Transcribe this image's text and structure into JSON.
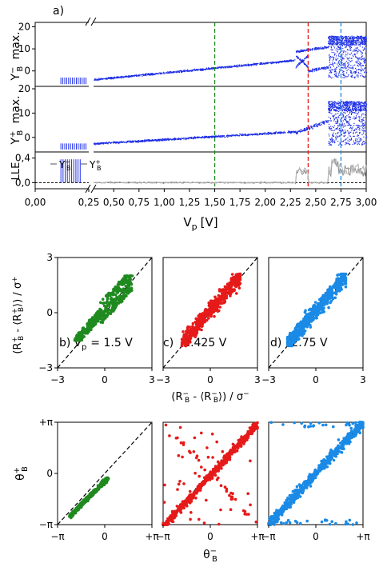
{
  "colors": {
    "blue": "#1f2fe6",
    "green": "#1f8a1f",
    "red": "#e61a1a",
    "light_blue": "#1a8ae6",
    "gray": "#8c8c8c",
    "black": "#000000"
  },
  "chart_data": [
    {
      "type": "scatter",
      "panel": "a",
      "label": "a)",
      "xlabel": "V",
      "xlabel_sub": "p",
      "xunit": "[V]",
      "x_ticks": [
        "0,00",
        "0,25",
        "0,50",
        "0,75",
        "1,00",
        "1,25",
        "1,50",
        "1,75",
        "2,00",
        "2,25",
        "2,50",
        "2,75",
        "3,00"
      ],
      "x_broken_between": [
        0.25,
        0.3
      ],
      "xlim": [
        0.3,
        3.0
      ],
      "markers": [
        {
          "x": 1.5,
          "color": "green",
          "style": "dashed"
        },
        {
          "x": 2.425,
          "color": "red",
          "style": "dashed"
        },
        {
          "x": 2.75,
          "color": "light_blue",
          "style": "dashed"
        }
      ],
      "subplots": [
        {
          "ylabel": "Y",
          "ylabel_sup": "−",
          "ylabel_sub": "B",
          "ylabel_tail": "max.",
          "y_ticks": [
            "0",
            "10",
            "20"
          ],
          "ylim": [
            -7,
            22
          ],
          "series_color": "blue",
          "branches": [
            {
              "x_from": 0.3,
              "x_to": 2.3,
              "y_from": -3.8,
              "y_to": 5.0,
              "spread": 1.2
            },
            {
              "x_from": 2.3,
              "x_to": 2.42,
              "y_from": 2.0,
              "y_to": 7.0,
              "spread": 1.5
            },
            {
              "x_from": 2.3,
              "x_to": 2.42,
              "y_from": 7.0,
              "y_to": 2.0,
              "spread": 1.5
            },
            {
              "x_from": 2.3,
              "x_to": 2.62,
              "y_from": 9.0,
              "y_to": 11.0,
              "spread": 1.5
            },
            {
              "x_from": 2.42,
              "x_to": 2.62,
              "y_from": 0.0,
              "y_to": 2.0,
              "spread": 2.0
            },
            {
              "x_from": 2.62,
              "x_to": 3.0,
              "y_from": -3.0,
              "y_to": 16.0,
              "band": true
            }
          ],
          "inset": {
            "x_from": 0.0,
            "x_to": 0.25,
            "y_from": -6.0,
            "y_to": -3.0
          }
        },
        {
          "ylabel": "Y",
          "ylabel_sup": "+",
          "ylabel_sub": "B",
          "ylabel_tail": "max.",
          "y_ticks": [
            "0",
            "10",
            "20"
          ],
          "ylim": [
            -6,
            21
          ],
          "series_color": "blue",
          "branches": [
            {
              "x_from": 0.3,
              "x_to": 2.3,
              "y_from": -2.5,
              "y_to": 2.5,
              "spread": 1.2
            },
            {
              "x_from": 2.3,
              "x_to": 2.62,
              "y_from": 2.0,
              "y_to": 7.0,
              "spread": 2.0
            },
            {
              "x_from": 2.62,
              "x_to": 3.0,
              "y_from": -3.0,
              "y_to": 15.0,
              "band": true
            }
          ],
          "inset": {
            "x_from": 0.0,
            "x_to": 0.25,
            "y_from": -5.0,
            "y_to": -2.5
          }
        },
        {
          "ylabel": "LLE",
          "y_ticks": [
            "0,0",
            "0,4"
          ],
          "ylim": [
            -0.1,
            0.5
          ],
          "legend": [
            {
              "label": "Y",
              "sup": "−",
              "sub": "B",
              "color": "gray"
            },
            {
              "label": "Y",
              "sup": "+",
              "sub": "B",
              "color": "gray"
            }
          ],
          "zero_line": true
        }
      ]
    },
    {
      "type": "scatter",
      "panel": "b",
      "label": "b)",
      "title_prefix": "V",
      "title_sub": "p",
      "title": "= 1.5 V",
      "color": "green",
      "xlim": [
        -3,
        3
      ],
      "ylim": [
        -3,
        3
      ],
      "x_ticks": [
        "−3",
        "0",
        "3"
      ],
      "y_ticks": [
        "−3",
        "0",
        "3"
      ],
      "diagonal": true,
      "cloud": {
        "shape": "loop",
        "x_range": [
          -1.9,
          1.8
        ],
        "y_range": [
          -1.5,
          2.0
        ]
      }
    },
    {
      "type": "scatter",
      "panel": "c",
      "label": "c)",
      "title": "2.425 V",
      "color": "red",
      "xlim": [
        -3,
        3
      ],
      "ylim": [
        -3,
        3
      ],
      "x_ticks": [
        "−3",
        "0",
        "3"
      ],
      "diagonal": true,
      "cloud": {
        "shape": "diagonal",
        "x_range": [
          -1.8,
          1.9
        ],
        "y_range": [
          -1.8,
          2.1
        ]
      }
    },
    {
      "type": "scatter",
      "panel": "d",
      "label": "d)",
      "title": "2.75 V",
      "color": "light_blue",
      "xlim": [
        -3,
        3
      ],
      "ylim": [
        -3,
        3
      ],
      "x_ticks": [
        "−3",
        "0",
        "3"
      ],
      "diagonal": true,
      "cloud": {
        "shape": "diagonal",
        "x_range": [
          -1.8,
          1.9
        ],
        "y_range": [
          -1.8,
          2.1
        ]
      }
    },
    {
      "type": "scatter",
      "panel": "b-phase",
      "color": "green",
      "xlim": [
        "−π",
        "+π"
      ],
      "ylim": [
        "−π",
        "+π"
      ],
      "x_ticks": [
        "−π",
        "0",
        "+π"
      ],
      "y_ticks": [
        "−π",
        "0",
        "+π"
      ],
      "diagonal": true,
      "cloud": {
        "shape": "clustered",
        "x_range": [
          -2.3,
          0.2
        ],
        "y_range": [
          -2.6,
          -0.3
        ]
      }
    },
    {
      "type": "scatter",
      "panel": "c-phase",
      "color": "red",
      "xlim": [
        "−π",
        "+π"
      ],
      "ylim": [
        "−π",
        "+π"
      ],
      "x_ticks": [
        "−π",
        "0",
        "+π"
      ],
      "diagonal": true,
      "cloud": {
        "shape": "band-with-outliers",
        "x_range": [
          -3.14,
          3.14
        ],
        "y_range": [
          -3.14,
          3.14
        ]
      }
    },
    {
      "type": "scatter",
      "panel": "d-phase",
      "color": "light_blue",
      "xlim": [
        "−π",
        "+π"
      ],
      "ylim": [
        "−π",
        "+π"
      ],
      "x_ticks": [
        "−π",
        "0",
        "+π"
      ],
      "diagonal": true,
      "cloud": {
        "shape": "band",
        "x_range": [
          -3.14,
          3.14
        ],
        "y_range": [
          -3.14,
          3.14
        ]
      }
    }
  ],
  "axis_labels": {
    "scatter_y": {
      "open": "(R",
      "sup1": "+",
      "sub1": "B",
      "mid": " - ⟨R",
      "sup2": "+",
      "sub2": "B",
      "close": "⟩) / σ",
      "sup3": "+"
    },
    "scatter_x": {
      "open": "(R",
      "sup1": "−",
      "sub1": "B",
      "mid": " - ⟨R",
      "sup2": "−",
      "sub2": "B",
      "close": "⟩) / σ",
      "sup3": "−"
    },
    "phase_y": {
      "base": "θ",
      "sup": "+",
      "sub": "B"
    },
    "phase_x": {
      "base": "θ",
      "sup": "−",
      "sub": "B"
    }
  }
}
